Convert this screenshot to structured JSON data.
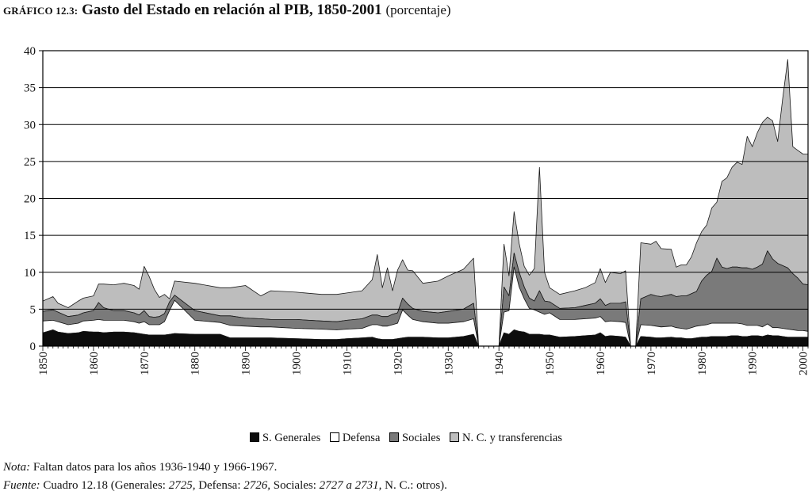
{
  "title": {
    "label": "GRÁFICO 12.3:",
    "main": "Gasto del Estado en relación al PIB, 1850-2001",
    "unit": "(porcentaje)"
  },
  "colors": {
    "s_generales": "#0d0d0d",
    "defensa": "#ffffff",
    "sociales": "#7a7a7a",
    "nc_transferencias": "#bdbdbd",
    "grid": "#000000"
  },
  "legend": {
    "items": [
      {
        "label": "S. Generales",
        "color": "#0d0d0d"
      },
      {
        "label": "Defensa",
        "color": "#ffffff"
      },
      {
        "label": "Sociales",
        "color": "#7a7a7a"
      },
      {
        "label": "N. C. y transferencias",
        "color": "#bdbdbd"
      }
    ]
  },
  "note": {
    "label": "Nota:",
    "text": " Faltan datos para los años 1936-1940 y 1966-1967."
  },
  "source": {
    "label": "Fuente:",
    "t1": " Cuadro 12.18 (Generales: ",
    "i1": "2725,",
    "t2": " Defensa: ",
    "i2": "2726,",
    "t3": " Sociales: ",
    "i3": "2727 a 2731,",
    "t4": " N. C.: otros)."
  },
  "chart_data": {
    "type": "area",
    "stacked": true,
    "xlim": [
      1850,
      2001
    ],
    "ylim": [
      0,
      40
    ],
    "yticks": [
      0,
      5,
      10,
      15,
      20,
      25,
      30,
      35,
      40
    ],
    "xticks": [
      1850,
      1860,
      1870,
      1880,
      1890,
      1900,
      1910,
      1920,
      1930,
      1940,
      1950,
      1960,
      1970,
      1980,
      1990,
      2000
    ],
    "grid": "horizontal",
    "legend_position": "bottom",
    "missing_years": [
      "1936-1940",
      "1966-1967"
    ],
    "x_keyframes": [
      1850,
      1852,
      1853,
      1855,
      1857,
      1858,
      1860,
      1861,
      1862,
      1864,
      1866,
      1868,
      1869,
      1870,
      1871,
      1872,
      1873,
      1874,
      1875,
      1876,
      1880,
      1885,
      1887,
      1890,
      1893,
      1895,
      1900,
      1905,
      1908,
      1910,
      1913,
      1915,
      1916,
      1917,
      1918,
      1919,
      1920,
      1921,
      1922,
      1923,
      1925,
      1928,
      1930,
      1933,
      1935,
      1936,
      1937,
      1940,
      1941,
      1942,
      1943,
      1944,
      1945,
      1946,
      1947,
      1948,
      1949,
      1950,
      1952,
      1955,
      1957,
      1959,
      1960,
      1961,
      1962,
      1964,
      1965,
      1966,
      1967,
      1968,
      1970,
      1971,
      1972,
      1974,
      1975,
      1976,
      1977,
      1978,
      1979,
      1980,
      1981,
      1982,
      1983,
      1984,
      1985,
      1986,
      1987,
      1988,
      1989,
      1990,
      1991,
      1992,
      1993,
      1994,
      1995,
      1996,
      1997,
      1998,
      1999,
      2000,
      2001
    ],
    "series": [
      {
        "name": "S. Generales",
        "values": [
          1.8,
          2.2,
          1.9,
          1.7,
          1.8,
          2.0,
          1.9,
          1.9,
          1.8,
          1.9,
          1.9,
          1.8,
          1.7,
          1.6,
          1.5,
          1.5,
          1.5,
          1.5,
          1.6,
          1.7,
          1.6,
          1.6,
          1.1,
          1.1,
          1.1,
          1.1,
          1.0,
          0.9,
          0.9,
          1.0,
          1.1,
          1.2,
          1.0,
          0.9,
          0.9,
          0.9,
          1.0,
          1.1,
          1.2,
          1.2,
          1.2,
          1.1,
          1.1,
          1.3,
          1.6,
          0,
          0,
          0,
          1.8,
          1.6,
          2.2,
          2.0,
          1.9,
          1.6,
          1.6,
          1.6,
          1.5,
          1.5,
          1.2,
          1.3,
          1.4,
          1.5,
          1.8,
          1.3,
          1.4,
          1.3,
          1.2,
          0,
          0,
          1.3,
          1.2,
          1.1,
          1.1,
          1.2,
          1.1,
          1.1,
          1.0,
          1.0,
          1.1,
          1.2,
          1.2,
          1.3,
          1.3,
          1.3,
          1.3,
          1.4,
          1.4,
          1.3,
          1.3,
          1.4,
          1.4,
          1.3,
          1.5,
          1.4,
          1.4,
          1.3,
          1.2,
          1.2,
          1.2,
          1.2,
          1.2
        ]
      },
      {
        "name": "Defensa",
        "values": [
          1.6,
          1.3,
          1.4,
          1.2,
          1.3,
          1.4,
          1.6,
          1.7,
          1.7,
          1.6,
          1.6,
          1.5,
          1.4,
          1.7,
          1.4,
          1.4,
          1.4,
          1.8,
          3.2,
          4.5,
          1.9,
          1.6,
          1.7,
          1.6,
          1.5,
          1.5,
          1.4,
          1.4,
          1.3,
          1.3,
          1.3,
          1.7,
          1.9,
          1.8,
          1.8,
          2.0,
          2.1,
          3.8,
          3.0,
          2.4,
          2.1,
          2.0,
          2.0,
          2.0,
          2.1,
          0,
          0,
          0,
          2.8,
          3.2,
          8.5,
          6.0,
          4.5,
          3.5,
          3.3,
          3.0,
          2.8,
          3.0,
          2.4,
          2.3,
          2.3,
          2.3,
          2.2,
          2.0,
          2.0,
          2.0,
          2.0,
          0,
          0,
          1.6,
          1.6,
          1.6,
          1.5,
          1.5,
          1.4,
          1.3,
          1.3,
          1.5,
          1.6,
          1.6,
          1.7,
          1.8,
          1.8,
          1.8,
          1.8,
          1.7,
          1.7,
          1.7,
          1.5,
          1.4,
          1.4,
          1.3,
          1.5,
          1.1,
          1.1,
          1.1,
          1.1,
          1.0,
          0.9,
          0.9,
          0.8
        ]
      },
      {
        "name": "Sociales",
        "values": [
          1.3,
          1.4,
          1.3,
          1.1,
          1.1,
          1.1,
          1.3,
          2.3,
          1.7,
          1.3,
          1.3,
          1.2,
          1.1,
          1.5,
          1.1,
          1.0,
          1.1,
          1.1,
          1.2,
          0.7,
          1.3,
          0.9,
          1.3,
          1.1,
          1.1,
          1.0,
          1.2,
          1.1,
          1.1,
          1.2,
          1.3,
          1.3,
          1.3,
          1.3,
          1.3,
          1.4,
          1.4,
          1.6,
          1.5,
          1.5,
          1.4,
          1.4,
          1.6,
          1.7,
          2.1,
          0,
          0,
          0,
          3.4,
          2.0,
          1.9,
          2.0,
          1.6,
          1.4,
          1.2,
          2.9,
          1.8,
          1.5,
          1.5,
          1.6,
          1.8,
          2.0,
          2.4,
          2.2,
          2.4,
          2.5,
          2.8,
          0,
          0,
          3.5,
          4.2,
          4.1,
          4.1,
          4.3,
          4.2,
          4.4,
          4.5,
          4.6,
          4.7,
          6.0,
          6.7,
          7.0,
          8.8,
          7.6,
          7.4,
          7.6,
          7.6,
          7.6,
          7.8,
          7.6,
          7.9,
          8.5,
          9.9,
          9.3,
          8.7,
          8.5,
          8.3,
          7.6,
          7.1,
          6.3,
          6.3
        ]
      },
      {
        "name": "N. C. y transferencias",
        "values": [
          1.4,
          1.8,
          1.2,
          1.2,
          1.9,
          2.0,
          2.0,
          2.5,
          3.2,
          3.5,
          3.7,
          3.7,
          3.5,
          6.0,
          5.4,
          3.8,
          2.6,
          2.6,
          0.4,
          1.9,
          3.7,
          3.8,
          3.8,
          4.4,
          3.1,
          3.9,
          3.7,
          3.6,
          3.7,
          3.7,
          3.8,
          4.8,
          8.2,
          3.9,
          6.6,
          3.2,
          5.8,
          5.2,
          4.6,
          5.1,
          3.8,
          4.3,
          4.8,
          5.4,
          6.1,
          0,
          0,
          0,
          5.8,
          2.7,
          5.6,
          3.9,
          2.8,
          3.1,
          4.4,
          16.7,
          3.9,
          1.9,
          1.9,
          2.3,
          2.4,
          2.8,
          4.1,
          3.1,
          4.2,
          4.0,
          4.2,
          0,
          0,
          7.6,
          6.8,
          7.4,
          6.5,
          6.1,
          4.0,
          4.2,
          4.2,
          5.0,
          6.6,
          6.7,
          6.8,
          8.6,
          7.6,
          11.6,
          12.3,
          13.5,
          14.2,
          14.0,
          17.8,
          16.6,
          18.2,
          19.2,
          18.1,
          18.7,
          16.5,
          22.6,
          28.2,
          17.2,
          17.3,
          17.6,
          17.7
        ]
      }
    ]
  }
}
